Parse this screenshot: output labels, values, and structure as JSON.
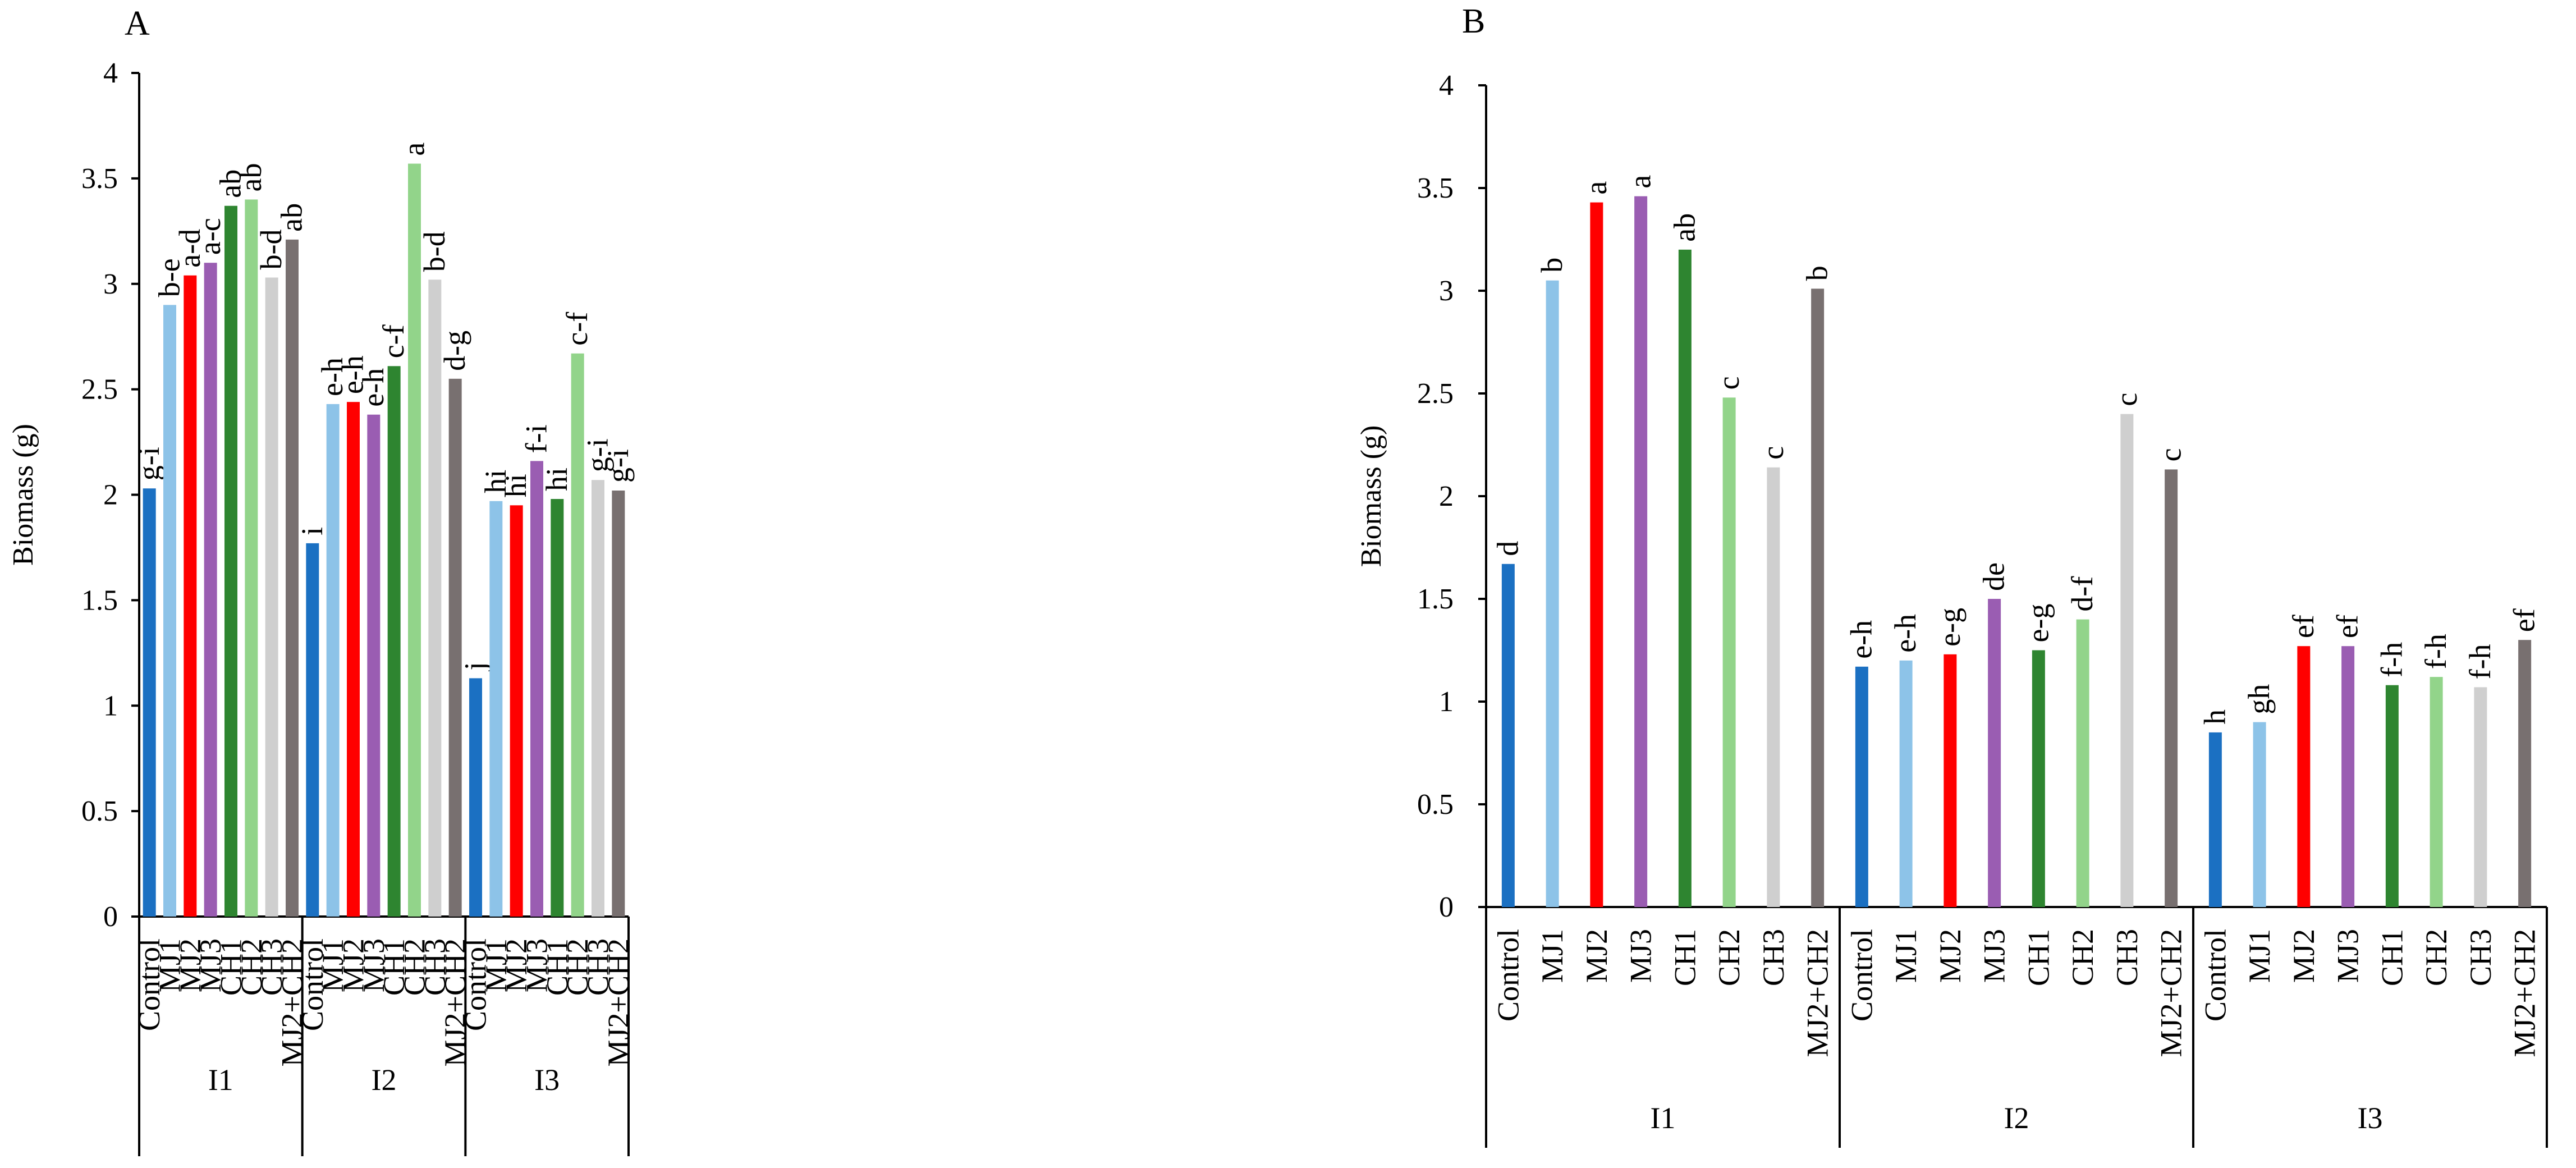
{
  "colors": {
    "Control": "#1b70c2",
    "MJ1": "#8dc3e8",
    "MJ2": "#ff0000",
    "MJ3": "#9a5db2",
    "CH1": "#2e8530",
    "CH2": "#92d48a",
    "CH3": "#cfcfcf",
    "MJ2+CH2": "#787070"
  },
  "chart_data": [
    {
      "type": "bar",
      "panel_label": "A",
      "ylabel": "Biomass (g)",
      "ylim": [
        0,
        4
      ],
      "yticks": [
        "0",
        "0.5",
        "1",
        "1.5",
        "2",
        "2.5",
        "3",
        "3.5",
        "4"
      ],
      "categories": [
        "Control",
        "MJ1",
        "MJ2",
        "MJ3",
        "CH1",
        "CH2",
        "CH3",
        "MJ2+CH2"
      ],
      "groups": [
        {
          "name": "I1",
          "values": [
            2.03,
            2.9,
            3.04,
            3.1,
            3.37,
            3.4,
            3.03,
            3.21
          ],
          "letters": [
            "g-i",
            "b-e",
            "a-d",
            "a-c",
            "ab",
            "ab",
            "b-d",
            "ab"
          ]
        },
        {
          "name": "I2",
          "values": [
            1.77,
            2.43,
            2.44,
            2.38,
            2.61,
            3.57,
            3.02,
            2.55
          ],
          "letters": [
            "i",
            "e-h",
            "e-h",
            "e-h",
            "c-f",
            "a",
            "b-d",
            "d-g"
          ]
        },
        {
          "name": "I3",
          "values": [
            1.13,
            1.97,
            1.95,
            2.16,
            1.98,
            2.67,
            2.07,
            2.02
          ],
          "letters": [
            "j",
            "hi",
            "hi",
            "f-i",
            "hi",
            "c-f",
            "g-i",
            "g-i"
          ]
        }
      ]
    },
    {
      "type": "bar",
      "panel_label": "B",
      "ylabel": "Biomass (g)",
      "ylim": [
        0,
        4
      ],
      "yticks": [
        "0",
        "0.5",
        "1",
        "1.5",
        "2",
        "2.5",
        "3",
        "3.5",
        "4"
      ],
      "categories": [
        "Control",
        "MJ1",
        "MJ2",
        "MJ3",
        "CH1",
        "CH2",
        "CH3",
        "MJ2+CH2"
      ],
      "groups": [
        {
          "name": "I1",
          "values": [
            1.67,
            3.05,
            3.43,
            3.46,
            3.2,
            2.48,
            2.14,
            3.01
          ],
          "letters": [
            "d",
            "b",
            "a",
            "a",
            "ab",
            "c",
            "c",
            "b"
          ]
        },
        {
          "name": "I2",
          "values": [
            1.17,
            1.2,
            1.23,
            1.5,
            1.25,
            1.4,
            2.4,
            2.13
          ],
          "letters": [
            "e-h",
            "e-h",
            "e-g",
            "de",
            "e-g",
            "d-f",
            "c",
            "c"
          ]
        },
        {
          "name": "I3",
          "values": [
            0.85,
            0.9,
            1.27,
            1.27,
            1.08,
            1.12,
            1.07,
            1.3
          ],
          "letters": [
            "h",
            "gh",
            "ef",
            "ef",
            "f-h",
            "f-h",
            "f-h",
            "ef"
          ]
        }
      ]
    }
  ]
}
